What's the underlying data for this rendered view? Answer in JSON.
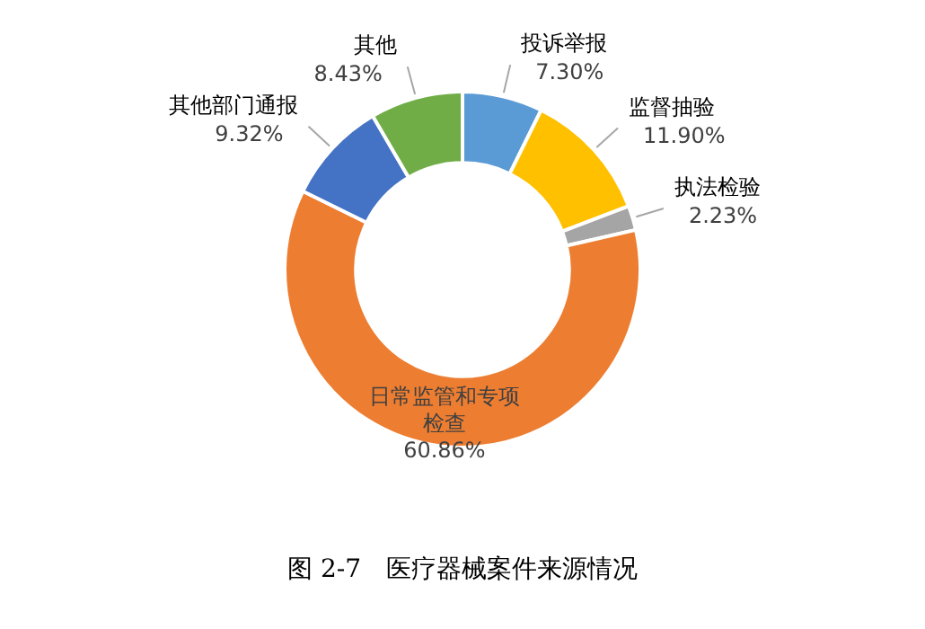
{
  "chart_data": {
    "type": "donut",
    "title": "图 2-7　医疗器械案件来源情况",
    "categories": [
      "投诉举报",
      "监督抽验",
      "执法检验",
      "日常监管和专项检查",
      "其他部门通报",
      "其他"
    ],
    "values": [
      7.3,
      11.9,
      2.23,
      60.86,
      9.32,
      8.43
    ],
    "value_labels": [
      "7.30%",
      "11.90%",
      "2.23%",
      "60.86%",
      "9.32%",
      "8.43%"
    ],
    "colors": [
      "#5b9bd5",
      "#ffc000",
      "#a5a5a5",
      "#ed7d31",
      "#4472c4",
      "#70ad47"
    ],
    "legend": false
  }
}
